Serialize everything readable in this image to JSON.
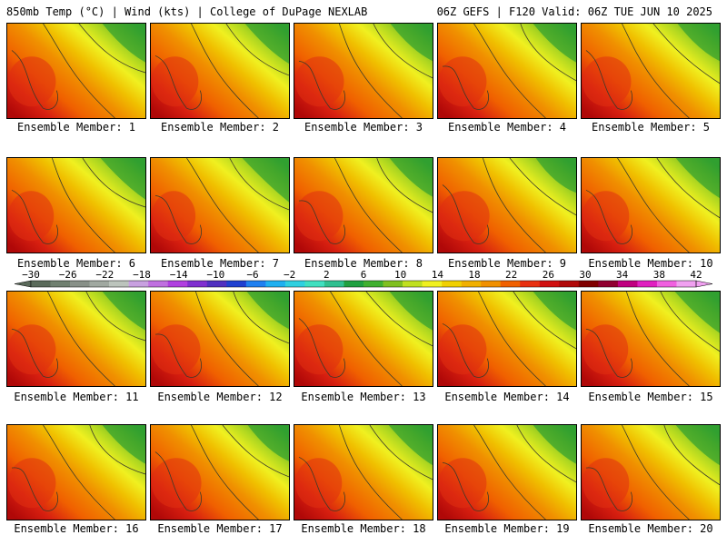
{
  "header": {
    "left": "850mb Temp (°C) | Wind (kts) | College of DuPage NEXLAB",
    "right": "06Z GEFS | F120 Valid: 06Z TUE JUN 10 2025"
  },
  "members": [
    {
      "label": "Ensemble Member: 1",
      "warmth": 0.55
    },
    {
      "label": "Ensemble Member: 2",
      "warmth": 0.5
    },
    {
      "label": "Ensemble Member: 3",
      "warmth": 0.6
    },
    {
      "label": "Ensemble Member: 4",
      "warmth": 0.55
    },
    {
      "label": "Ensemble Member: 5",
      "warmth": 0.6
    },
    {
      "label": "Ensemble Member: 6",
      "warmth": 0.45
    },
    {
      "label": "Ensemble Member: 7",
      "warmth": 0.35
    },
    {
      "label": "Ensemble Member: 8",
      "warmth": 0.55
    },
    {
      "label": "Ensemble Member: 9",
      "warmth": 0.7
    },
    {
      "label": "Ensemble Member: 10",
      "warmth": 0.5
    },
    {
      "label": "Ensemble Member: 11",
      "warmth": 0.55
    },
    {
      "label": "Ensemble Member: 12",
      "warmth": 0.6
    },
    {
      "label": "Ensemble Member: 13",
      "warmth": 0.55
    },
    {
      "label": "Ensemble Member: 14",
      "warmth": 0.55
    },
    {
      "label": "Ensemble Member: 15",
      "warmth": 0.45
    },
    {
      "label": "Ensemble Member: 16",
      "warmth": 0.55
    },
    {
      "label": "Ensemble Member: 17",
      "warmth": 0.65
    },
    {
      "label": "Ensemble Member: 18",
      "warmth": 0.5
    },
    {
      "label": "Ensemble Member: 19",
      "warmth": 0.55
    },
    {
      "label": "Ensemble Member: 20",
      "warmth": 0.5
    }
  ],
  "colorbar": {
    "tick_labels": [
      "-30",
      "-26",
      "-22",
      "-18",
      "-14",
      "-10",
      "-6",
      "-2",
      "2",
      "6",
      "10",
      "14",
      "18",
      "22",
      "26",
      "30",
      "34",
      "38",
      "42"
    ],
    "colors": [
      "#5a6a5a",
      "#708070",
      "#889088",
      "#a0a8a0",
      "#bcc4bc",
      "#c8a0e0",
      "#c070e0",
      "#b040e0",
      "#8030d0",
      "#5030c0",
      "#2040d0",
      "#2080f0",
      "#20b0f0",
      "#30d0e0",
      "#40e0c0",
      "#30c090",
      "#20a040",
      "#40b030",
      "#80c020",
      "#c0e020",
      "#f0f020",
      "#f0d000",
      "#f0b000",
      "#f09000",
      "#f06000",
      "#e83010",
      "#d01010",
      "#b00808",
      "#800000",
      "#900030",
      "#c00080",
      "#e020c0",
      "#f060e0",
      "#f0a0f0"
    ]
  }
}
